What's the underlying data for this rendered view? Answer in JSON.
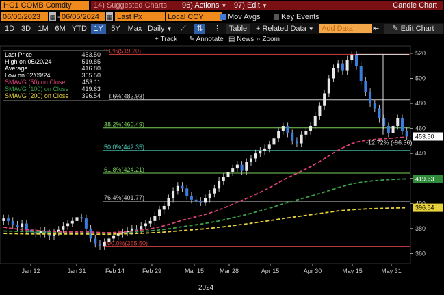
{
  "header": {
    "ticker": "HG1 COMB Comdty",
    "suggested": "14) Suggested Charts",
    "actions": "96) Actions",
    "edit": "97) Edit",
    "title": "Candle Chart"
  },
  "toolbar1": {
    "start_date": "06/06/2023",
    "end_date": "06/05/2024",
    "field": "Last Px",
    "currency": "Local CCY",
    "mov_avgs": "Mov Avgs",
    "key_events": "Key Events"
  },
  "toolbar2": {
    "ranges": [
      "1D",
      "3D",
      "1M",
      "6M",
      "YTD",
      "1Y",
      "5Y",
      "Max"
    ],
    "active_range": "1Y",
    "period": "Daily",
    "table": "Table",
    "related": "+ Related Data",
    "add_data": "Add Data",
    "edit_chart": "Edit Chart"
  },
  "toolbar3": {
    "track": "Track",
    "annotate": "Annotate",
    "news": "News",
    "zoom": "Zoom"
  },
  "legend": [
    {
      "label": "Last Price",
      "value": "453.50",
      "color": "#ffffff"
    },
    {
      "label": "High on 05/20/24",
      "value": "519.85",
      "color": "#ffffff"
    },
    {
      "label": "Average",
      "value": "416.80",
      "color": "#ffffff"
    },
    {
      "label": "Low on 02/09/24",
      "value": "365.50",
      "color": "#ffffff"
    },
    {
      "label": "SMAVG (50)  on Close",
      "value": "453.11",
      "color": "#e0407a"
    },
    {
      "label": "SMAVG (100)  on Close",
      "value": "419.63",
      "color": "#3aa34a"
    },
    {
      "label": "SMAVG (200)  on Close",
      "value": "396.54",
      "color": "#e8d23a"
    }
  ],
  "fib_labels": [
    {
      "text": "0.0%(519.20)",
      "value": 519.2,
      "color": "#d04040"
    },
    {
      "text": "23.6%(482.93)",
      "value": 482.93,
      "color": "#cccccc"
    },
    {
      "text": "38.2%(460.49)",
      "value": 460.49,
      "color": "#7ad15a"
    },
    {
      "text": "50.0%(442.35)",
      "value": 442.35,
      "color": "#4fd1c0"
    },
    {
      "text": "61.8%(424.21)",
      "value": 424.21,
      "color": "#7ad15a"
    },
    {
      "text": "76.4%(401.77)",
      "value": 401.77,
      "color": "#cccccc"
    },
    {
      "text": "100.0%(365.50)",
      "value": 365.5,
      "color": "#d04040"
    }
  ],
  "retrace_label": "-12.72% (-96.36)",
  "price_tags": [
    {
      "text": "453.50",
      "value": 453.5,
      "bg": "#ffffff",
      "fg": "#000000"
    },
    {
      "text": "419.63",
      "value": 419.63,
      "bg": "#2f8a3a",
      "fg": "#ffffff"
    },
    {
      "text": "396.54",
      "value": 396.54,
      "bg": "#e8d23a",
      "fg": "#000000"
    }
  ],
  "yaxis": {
    "ticks": [
      360,
      380,
      400,
      420,
      440,
      460,
      480,
      500,
      520
    ],
    "min": 352,
    "max": 526
  },
  "xaxis": {
    "labels": [
      "Jan 12",
      "Jan 31",
      "Feb 14",
      "Feb 29",
      "Mar 15",
      "Mar 28",
      "Apr 15",
      "Apr 30",
      "May 15",
      "May 31"
    ],
    "year": "2024"
  },
  "chart_data": {
    "type": "candlestick",
    "ylim": [
      352,
      526
    ],
    "closes": [
      388,
      386,
      383,
      381,
      384,
      379,
      377,
      376,
      378,
      376,
      374,
      377,
      379,
      382,
      384,
      386,
      389,
      388,
      380,
      372,
      368,
      366,
      369,
      372,
      374,
      376,
      377,
      378,
      380,
      379,
      382,
      384,
      386,
      390,
      395,
      398,
      404,
      410,
      414,
      412,
      406,
      403,
      402,
      401,
      404,
      408,
      412,
      418,
      421,
      425,
      428,
      431,
      426,
      433,
      436,
      440,
      442,
      444,
      447,
      452,
      458,
      462,
      456,
      450,
      448,
      455,
      458,
      462,
      470,
      478,
      488,
      500,
      508,
      512,
      506,
      515,
      519,
      510,
      498,
      489,
      480,
      476,
      468,
      462,
      456,
      462,
      468,
      458,
      453.5
    ],
    "sma50": [
      381,
      380.5,
      380,
      379.6,
      379.3,
      379,
      378.8,
      378.5,
      378.2,
      378,
      377.8,
      377.6,
      377.4,
      377.3,
      377.2,
      377.2,
      377.3,
      377.4,
      377.4,
      377.3,
      377,
      376.8,
      376.7,
      376.7,
      376.8,
      377,
      377.3,
      377.6,
      378,
      378.3,
      378.7,
      379.2,
      379.8,
      380.5,
      381.3,
      382.2,
      383.2,
      384.3,
      385.5,
      386.6,
      387.6,
      388.5,
      389.4,
      390.3,
      391.3,
      392.4,
      393.6,
      394.9,
      396.3,
      397.8,
      399.4,
      401,
      402.4,
      403.9,
      405.5,
      407.2,
      408.9,
      410.7,
      412.6,
      414.5,
      416.6,
      418.7,
      420.6,
      422.3,
      424,
      425.8,
      427.6,
      429.5,
      431.5,
      433.6,
      435.8,
      438.1,
      440.4,
      442.6,
      444.4,
      446.2,
      447.8,
      449,
      449.8,
      450.4,
      450.8,
      451.2,
      451.5,
      451.8,
      452,
      452.3,
      452.6,
      452.9,
      453.11
    ],
    "sma100": [
      378,
      377.9,
      377.8,
      377.7,
      377.6,
      377.5,
      377.4,
      377.3,
      377.2,
      377.1,
      377.1,
      377,
      377,
      376.9,
      376.9,
      376.9,
      376.9,
      376.9,
      376.8,
      376.7,
      376.6,
      376.5,
      376.5,
      376.5,
      376.6,
      376.7,
      376.8,
      377,
      377.2,
      377.4,
      377.6,
      377.9,
      378.2,
      378.5,
      378.9,
      379.3,
      379.8,
      380.3,
      380.9,
      381.5,
      382,
      382.5,
      383,
      383.5,
      384.1,
      384.7,
      385.4,
      386.1,
      386.9,
      387.7,
      388.6,
      389.5,
      390.3,
      391.2,
      392.1,
      393.1,
      394.1,
      395.1,
      396.2,
      397.3,
      398.5,
      399.7,
      400.8,
      401.8,
      402.8,
      403.8,
      404.8,
      405.8,
      406.9,
      408,
      409.1,
      410.3,
      411.5,
      412.6,
      413.6,
      414.6,
      415.5,
      416.3,
      416.9,
      417.4,
      417.8,
      418.2,
      418.5,
      418.8,
      419,
      419.2,
      419.4,
      419.5,
      419.63
    ],
    "sma200": [
      376,
      375.9,
      375.9,
      375.8,
      375.8,
      375.7,
      375.7,
      375.7,
      375.6,
      375.6,
      375.6,
      375.6,
      375.6,
      375.6,
      375.6,
      375.6,
      375.6,
      375.6,
      375.6,
      375.5,
      375.5,
      375.5,
      375.5,
      375.5,
      375.6,
      375.6,
      375.7,
      375.8,
      375.9,
      376,
      376.1,
      376.3,
      376.5,
      376.7,
      376.9,
      377.1,
      377.4,
      377.7,
      378,
      378.3,
      378.6,
      378.9,
      379.2,
      379.5,
      379.8,
      380.2,
      380.6,
      381,
      381.4,
      381.8,
      382.3,
      382.8,
      383.2,
      383.7,
      384.2,
      384.7,
      385.2,
      385.7,
      386.3,
      386.8,
      387.4,
      388,
      388.5,
      389,
      389.5,
      390,
      390.5,
      391,
      391.5,
      392,
      392.5,
      393,
      393.5,
      394,
      394.3,
      394.6,
      394.9,
      395.2,
      395.4,
      395.6,
      395.8,
      395.9,
      396,
      396.1,
      396.2,
      396.3,
      396.4,
      396.5,
      396.54
    ]
  }
}
